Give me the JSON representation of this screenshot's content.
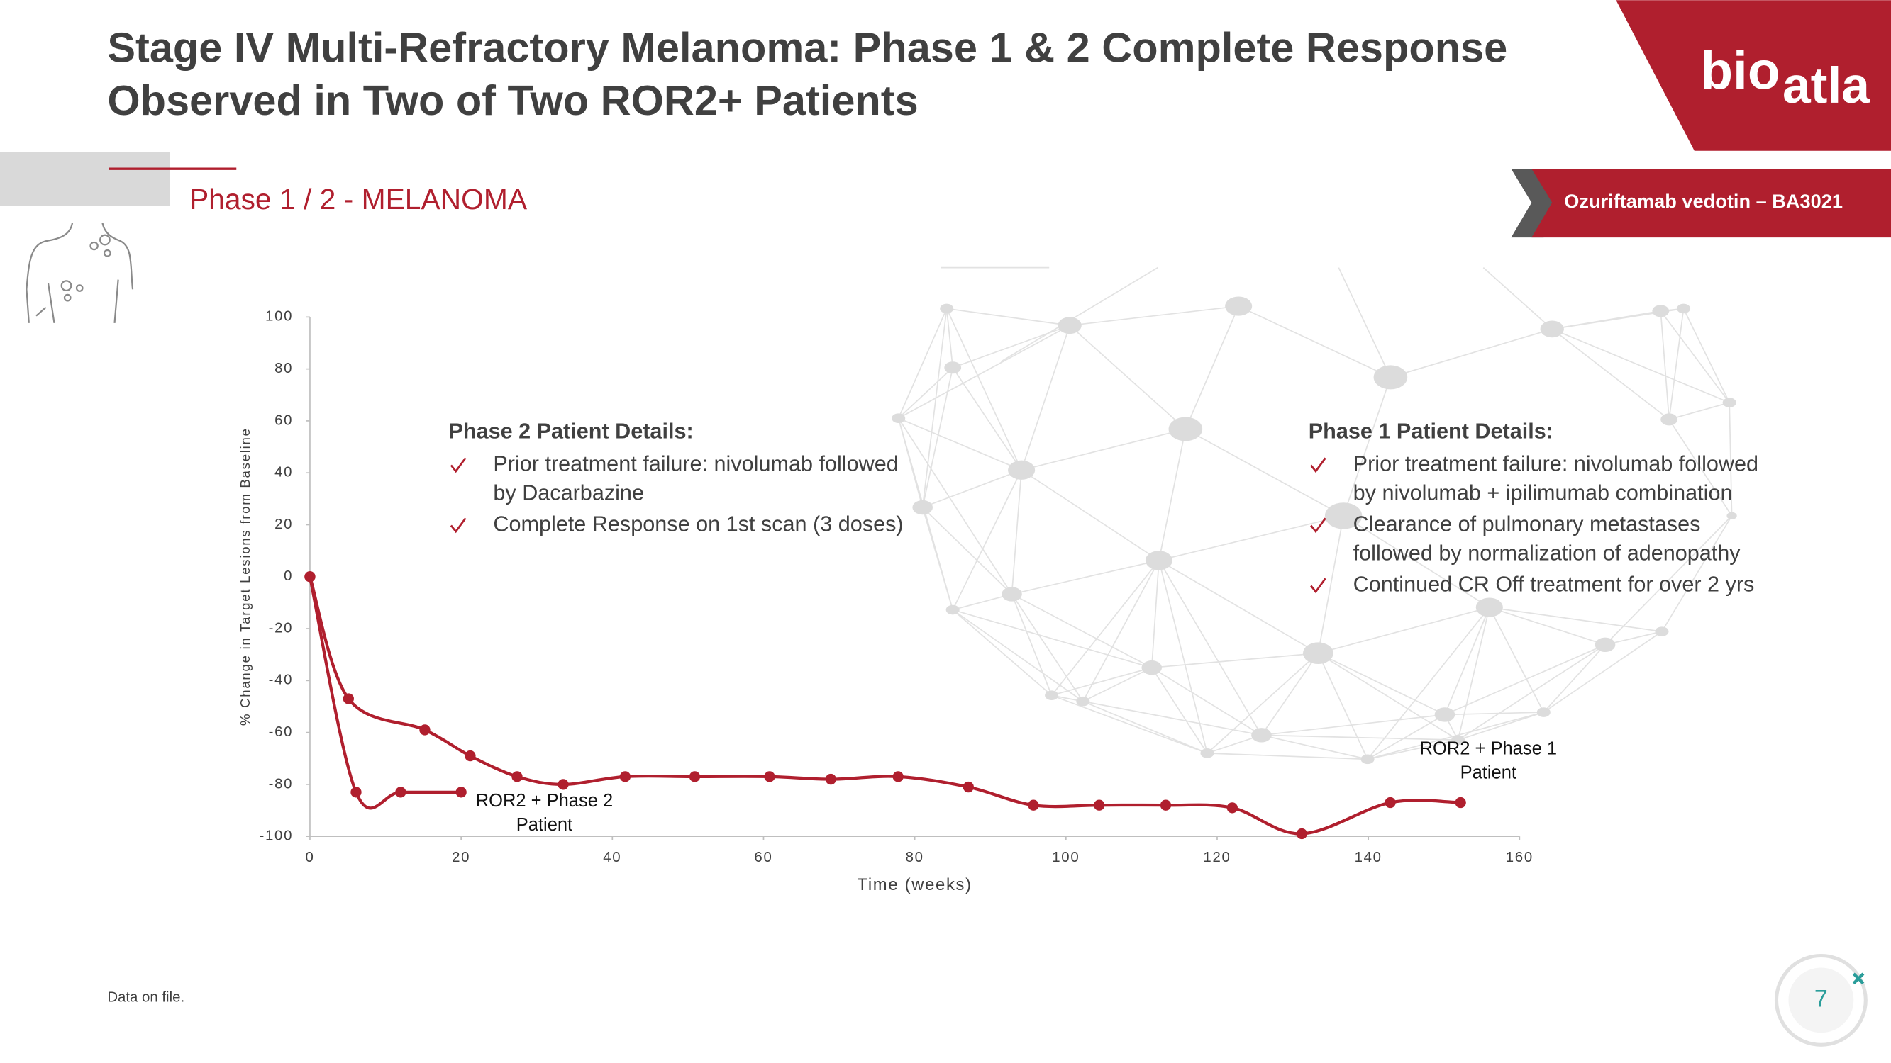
{
  "header": {
    "title": [
      "Stage IV Multi-Refractory Melanoma: Phase 1 & 2 Complete Response",
      "Observed in Two of Two ROR2+ Patients"
    ],
    "section": "Phase 1 / 2 - MELANOMA",
    "badge": "Ozuriftamab vedotin – BA3021",
    "logo": [
      "bio",
      "atla"
    ]
  },
  "details": [
    {
      "heading": "Phase 2 Patient Details:",
      "items": [
        [
          "Prior treatment failure: nivolumab followed",
          "by Dacarbazine"
        ],
        [
          "Complete Response on 1st scan (3 doses)"
        ]
      ]
    },
    {
      "heading": "Phase 1 Patient Details:",
      "items": [
        [
          "Prior treatment failure: nivolumab followed",
          "by nivolumab + ipilimumab combination"
        ],
        [
          "Clearance of pulmonary metastases",
          "followed by normalization of adenopathy"
        ],
        [
          "Continued CR Off treatment for over 2 yrs"
        ]
      ]
    }
  ],
  "chart_data": {
    "type": "line",
    "x_label": "Time (weeks)",
    "y_label": "% Change in Target Lesions from Baseline",
    "xlim": [
      0,
      160
    ],
    "xticks": [
      0,
      20,
      40,
      60,
      80,
      100,
      120,
      140,
      160
    ],
    "ylim": [
      -100,
      100
    ],
    "yticks": [
      100,
      80,
      60,
      40,
      20,
      0,
      -20,
      -40,
      -60,
      -80,
      -100
    ],
    "grid": false,
    "series": [
      {
        "annotation": [
          "ROR2 + Phase 2",
          "Patient"
        ],
        "color": "#b01f2e",
        "x": [
          0,
          6.1,
          12,
          20
        ],
        "values": [
          0,
          -83,
          -83,
          -83
        ]
      },
      {
        "annotation": [
          "ROR2 + Phase 1",
          "Patient"
        ],
        "color": "#b01f2e",
        "x": [
          0,
          5.1,
          15.2,
          21.2,
          27.4,
          33.5,
          41.7,
          50.9,
          60.8,
          68.9,
          77.8,
          87.1,
          95.7,
          104.4,
          113.2,
          122,
          131.2,
          142.9,
          152.2
        ],
        "values": [
          0,
          -47,
          -59,
          -69,
          -77,
          -80,
          -77,
          -77,
          -77,
          -78,
          -77,
          -81,
          -88,
          -88,
          -88,
          -89,
          -99,
          -87,
          -87
        ]
      }
    ]
  },
  "footer": {
    "note": "Data on file.",
    "page": "7"
  }
}
